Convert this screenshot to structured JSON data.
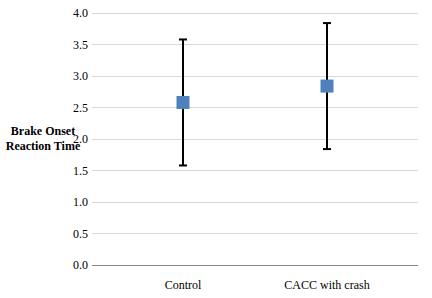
{
  "chart_data": {
    "type": "errorbar",
    "y_label": "Brake Onset Reaction Time",
    "categories": [
      "Control",
      "CACC with crash"
    ],
    "values": [
      2.58,
      2.84
    ],
    "errors": [
      1.0,
      1.0
    ],
    "color": "#4f81bd",
    "ylim": [
      0,
      4
    ],
    "yticks": [
      {
        "value": 0,
        "label": "0.0"
      },
      {
        "value": 0.5,
        "label": "0.5"
      },
      {
        "value": 1,
        "label": "1.0"
      },
      {
        "value": 1.5,
        "label": "1.5"
      },
      {
        "value": 2,
        "label": "2.0"
      },
      {
        "value": 2.5,
        "label": "2.5"
      },
      {
        "value": 3,
        "label": "3.0"
      },
      {
        "value": 3.5,
        "label": "3.5"
      },
      {
        "value": 4,
        "label": "4.0"
      }
    ],
    "grid": true
  }
}
